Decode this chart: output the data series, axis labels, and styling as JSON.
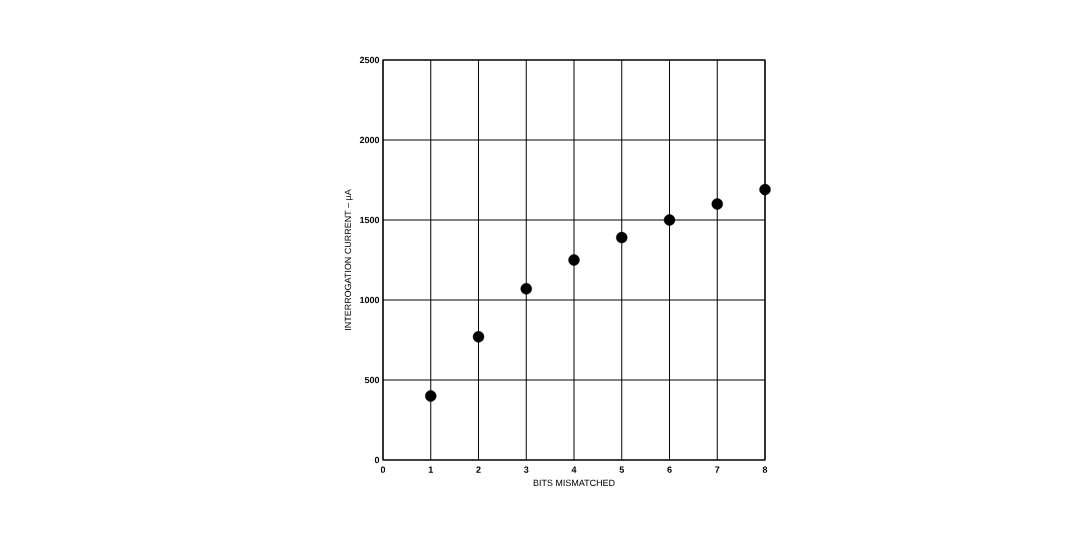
{
  "chart_data": {
    "type": "scatter",
    "xlabel": "BITS MISMATCHED",
    "ylabel": "INTERROGATION CURRENT – μA",
    "x": [
      1,
      2,
      3,
      4,
      5,
      6,
      7,
      8
    ],
    "values": [
      400,
      770,
      1070,
      1250,
      1390,
      1500,
      1600,
      1690
    ],
    "color": "#000000",
    "marker": "circle",
    "xlim": [
      0,
      8
    ],
    "xticks": [
      0,
      1,
      2,
      3,
      4,
      5,
      6,
      7,
      8
    ],
    "ylim": [
      0,
      2500
    ],
    "yticks": [
      0,
      500,
      1000,
      1500,
      2000,
      2500
    ],
    "grid": true
  }
}
